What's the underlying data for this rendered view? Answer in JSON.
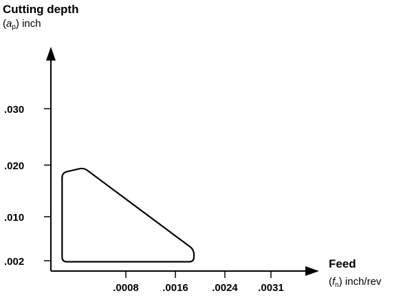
{
  "chart_data": {
    "type": "area",
    "y_axis": {
      "title": "Cutting depth",
      "unit_prefix": "(",
      "unit_symbol": "a",
      "unit_subscript": "p",
      "unit_suffix": ") inch",
      "ticks": [
        ".030",
        ".020",
        ".010",
        ".002"
      ],
      "tick_values": [
        0.03,
        0.02,
        0.01,
        0.002
      ]
    },
    "x_axis": {
      "title": "Feed",
      "unit_prefix": "(",
      "unit_symbol": "f",
      "unit_subscript": "n",
      "unit_suffix": ") inch/rev",
      "ticks": [
        ".0008",
        ".0016",
        ".0024",
        ".0031"
      ],
      "tick_values": [
        0.0008,
        0.0016,
        0.0024,
        0.0031
      ]
    },
    "region_outline": [
      {
        "feed": 0.00012,
        "depth": 0.0185
      },
      {
        "feed": 0.00035,
        "depth": 0.0195
      },
      {
        "feed": 0.0019,
        "depth": 0.004
      },
      {
        "feed": 0.0019,
        "depth": 0.0018
      },
      {
        "feed": 0.00012,
        "depth": 0.0018
      }
    ],
    "grid": false,
    "legend": "none"
  }
}
